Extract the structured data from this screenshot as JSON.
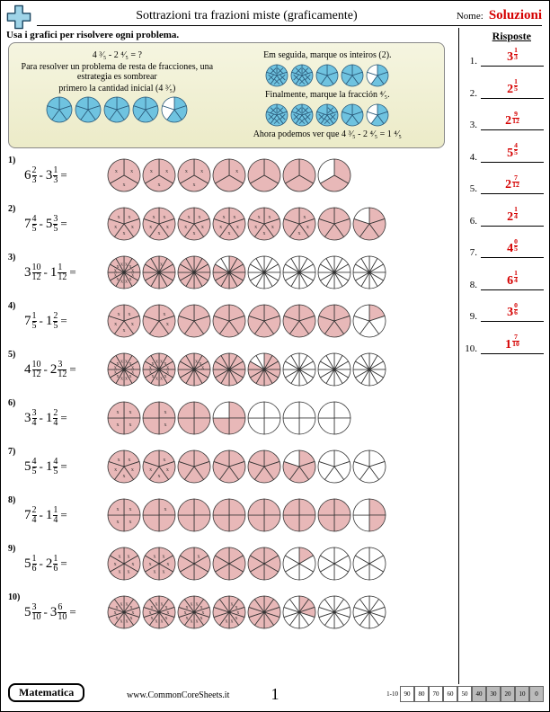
{
  "header": {
    "title": "Sottrazioni tra frazioni miste (graficamente)",
    "name_label": "Nome:",
    "solutions": "Soluzioni"
  },
  "instruction": "Usa i grafici per risolvere ogni problema.",
  "answers_header": "Risposte",
  "example": {
    "eq": "4 ³⁄₅ - 2 ⁴⁄₅ = ?",
    "text1": "Para resolver un problema de resta de fracciones, una estrategia es sombrear",
    "text2": "primero la cantidad inicial (4 ³⁄₅)",
    "step1": "Em seguida, marque os inteiros (2).",
    "step2": "Finalmente, marque la fracción ⁴⁄₅.",
    "result": "Ahora podemos ver que 4 ³⁄₅ - 2 ⁴⁄₅ = 1 ⁴⁄₅",
    "result_answer": "1 ⁴⁄₅",
    "color_fill": "#6fc3e0",
    "color_stroke": "#2a5a7a"
  },
  "colors": {
    "problem_fill": "#e8b8b8",
    "problem_stroke": "#333333",
    "answer_red": "#d50000"
  },
  "problems": [
    {
      "n": "1",
      "a_w": 6,
      "a_n": 2,
      "a_d": 3,
      "b_w": 3,
      "b_n": 1,
      "b_d": 3,
      "circles": 7,
      "filled": 6,
      "part": 2,
      "marked_full": 3,
      "marked_part": 1
    },
    {
      "n": "2",
      "a_w": 7,
      "a_n": 4,
      "a_d": 5,
      "b_w": 5,
      "b_n": 3,
      "b_d": 5,
      "circles": 8,
      "filled": 7,
      "part": 4,
      "marked_full": 5,
      "marked_part": 3
    },
    {
      "n": "3",
      "a_w": 3,
      "a_n": 10,
      "a_d": 12,
      "b_w": 1,
      "b_n": 1,
      "b_d": 12,
      "circles": 8,
      "filled": 3,
      "part": 10,
      "marked_full": 1,
      "marked_part": 1
    },
    {
      "n": "4",
      "a_w": 7,
      "a_n": 1,
      "a_d": 5,
      "b_w": 1,
      "b_n": 2,
      "b_d": 5,
      "circles": 8,
      "filled": 7,
      "part": 1,
      "marked_full": 1,
      "marked_part": 2
    },
    {
      "n": "5",
      "a_w": 4,
      "a_n": 10,
      "a_d": 12,
      "b_w": 2,
      "b_n": 3,
      "b_d": 12,
      "circles": 8,
      "filled": 4,
      "part": 10,
      "marked_full": 2,
      "marked_part": 3
    },
    {
      "n": "6",
      "a_w": 3,
      "a_n": 3,
      "a_d": 4,
      "b_w": 1,
      "b_n": 2,
      "b_d": 4,
      "circles": 7,
      "filled": 3,
      "part": 3,
      "marked_full": 1,
      "marked_part": 2
    },
    {
      "n": "7",
      "a_w": 5,
      "a_n": 4,
      "a_d": 5,
      "b_w": 1,
      "b_n": 4,
      "b_d": 5,
      "circles": 8,
      "filled": 5,
      "part": 4,
      "marked_full": 1,
      "marked_part": 4
    },
    {
      "n": "8",
      "a_w": 7,
      "a_n": 2,
      "a_d": 4,
      "b_w": 1,
      "b_n": 1,
      "b_d": 4,
      "circles": 8,
      "filled": 7,
      "part": 2,
      "marked_full": 1,
      "marked_part": 1
    },
    {
      "n": "9",
      "a_w": 5,
      "a_n": 1,
      "a_d": 6,
      "b_w": 2,
      "b_n": 1,
      "b_d": 6,
      "circles": 8,
      "filled": 5,
      "part": 1,
      "marked_full": 2,
      "marked_part": 1
    },
    {
      "n": "10",
      "a_w": 5,
      "a_n": 3,
      "a_d": 10,
      "b_w": 3,
      "b_n": 6,
      "b_d": 10,
      "circles": 8,
      "filled": 5,
      "part": 3,
      "marked_full": 3,
      "marked_part": 6
    }
  ],
  "answers": [
    {
      "n": "1.",
      "w": 3,
      "num": 1,
      "den": 3
    },
    {
      "n": "2.",
      "w": 2,
      "num": 1,
      "den": 5
    },
    {
      "n": "3.",
      "w": 2,
      "num": 9,
      "den": 12
    },
    {
      "n": "4.",
      "w": 5,
      "num": 4,
      "den": 5
    },
    {
      "n": "5.",
      "w": 2,
      "num": 7,
      "den": 12
    },
    {
      "n": "6.",
      "w": 2,
      "num": 1,
      "den": 4
    },
    {
      "n": "7.",
      "w": 4,
      "num": 0,
      "den": 5
    },
    {
      "n": "8.",
      "w": 6,
      "num": 1,
      "den": 4
    },
    {
      "n": "9.",
      "w": 3,
      "num": 0,
      "den": 6
    },
    {
      "n": "10.",
      "w": 1,
      "num": 7,
      "den": 10
    }
  ],
  "footer": {
    "subject": "Matematica",
    "site": "www.CommonCoreSheets.it",
    "page": "1",
    "score_label": "1-10",
    "scores": [
      "90",
      "80",
      "70",
      "60",
      "50",
      "40",
      "30",
      "20",
      "10",
      "0"
    ],
    "shaded_from": 5
  }
}
